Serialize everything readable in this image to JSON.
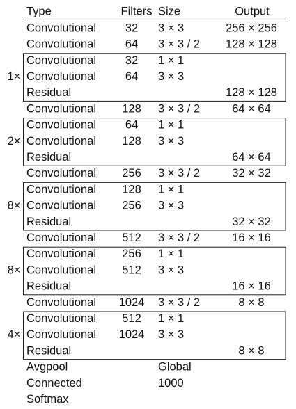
{
  "header": {
    "type": "Type",
    "filters": "Filters",
    "size": "Size",
    "output": "Output"
  },
  "rows": [
    {
      "type": "Convolutional",
      "filters": "32",
      "size": "3 × 3",
      "output": "256 × 256"
    },
    {
      "type": "Convolutional",
      "filters": "64",
      "size": "3 × 3 / 2",
      "output": "128 × 128"
    },
    {
      "repeat": "1×",
      "rows": [
        {
          "type": "Convolutional",
          "filters": "32",
          "size": "1 × 1"
        },
        {
          "type": "Convolutional",
          "filters": "64",
          "size": "3 × 3"
        },
        {
          "type": "Residual",
          "output": "128 × 128"
        }
      ]
    },
    {
      "type": "Convolutional",
      "filters": "128",
      "size": "3 × 3 / 2",
      "output": "64 × 64"
    },
    {
      "repeat": "2×",
      "rows": [
        {
          "type": "Convolutional",
          "filters": "64",
          "size": "1 × 1"
        },
        {
          "type": "Convolutional",
          "filters": "128",
          "size": "3 × 3"
        },
        {
          "type": "Residual",
          "output": "64 × 64"
        }
      ]
    },
    {
      "type": "Convolutional",
      "filters": "256",
      "size": "3 × 3 / 2",
      "output": "32 × 32"
    },
    {
      "repeat": "8×",
      "rows": [
        {
          "type": "Convolutional",
          "filters": "128",
          "size": "1 × 1"
        },
        {
          "type": "Convolutional",
          "filters": "256",
          "size": "3 × 3"
        },
        {
          "type": "Residual",
          "output": "32 × 32"
        }
      ]
    },
    {
      "type": "Convolutional",
      "filters": "512",
      "size": "3 × 3 / 2",
      "output": "16 × 16"
    },
    {
      "repeat": "8×",
      "rows": [
        {
          "type": "Convolutional",
          "filters": "256",
          "size": "1 × 1"
        },
        {
          "type": "Convolutional",
          "filters": "512",
          "size": "3 × 3"
        },
        {
          "type": "Residual",
          "output": "16 × 16"
        }
      ]
    },
    {
      "type": "Convolutional",
      "filters": "1024",
      "size": "3 × 3 / 2",
      "output": "8 × 8"
    },
    {
      "repeat": "4×",
      "rows": [
        {
          "type": "Convolutional",
          "filters": "512",
          "size": "1 × 1"
        },
        {
          "type": "Convolutional",
          "filters": "1024",
          "size": "3 × 3"
        },
        {
          "type": "Residual",
          "output": "8 × 8"
        }
      ]
    },
    {
      "type": "Avgpool",
      "size": "Global"
    },
    {
      "type": "Connected",
      "size": "1000"
    },
    {
      "type": "Softmax"
    }
  ]
}
